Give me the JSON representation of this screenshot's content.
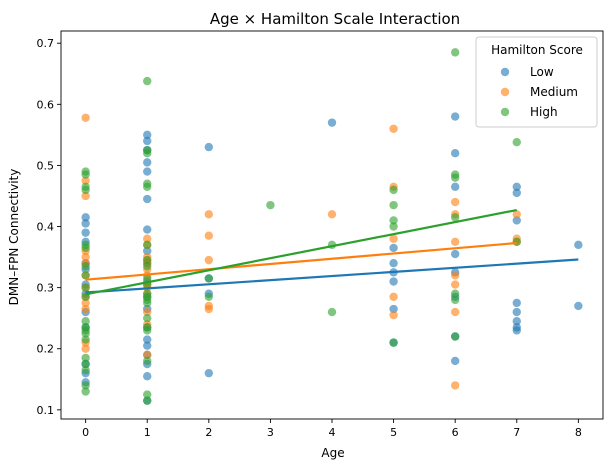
{
  "chart_data": {
    "type": "scatter",
    "title": "Age × Hamilton Scale Interaction",
    "xlabel": "Age",
    "ylabel": "DMN–FPN Connectivity",
    "xlim": [
      -0.4,
      8.4
    ],
    "ylim": [
      0.085,
      0.72
    ],
    "x_ticks": [
      0,
      1,
      2,
      3,
      4,
      5,
      6,
      7,
      8
    ],
    "y_ticks": [
      0.1,
      0.2,
      0.3,
      0.4,
      0.5,
      0.6,
      0.7
    ],
    "grid": false,
    "legend": {
      "title": "Hamilton Score",
      "placement": "top-right"
    },
    "series": [
      {
        "name": "Low",
        "color": "#1f77b4",
        "points": [
          [
            0,
            0.415
          ],
          [
            0,
            0.405
          ],
          [
            0,
            0.39
          ],
          [
            0,
            0.375
          ],
          [
            0,
            0.34
          ],
          [
            0,
            0.33
          ],
          [
            0,
            0.305
          ],
          [
            0,
            0.29
          ],
          [
            0,
            0.26
          ],
          [
            0,
            0.235
          ],
          [
            0,
            0.175
          ],
          [
            0,
            0.16
          ],
          [
            0,
            0.145
          ],
          [
            1,
            0.55
          ],
          [
            1,
            0.54
          ],
          [
            1,
            0.525
          ],
          [
            1,
            0.505
          ],
          [
            1,
            0.49
          ],
          [
            1,
            0.445
          ],
          [
            1,
            0.395
          ],
          [
            1,
            0.36
          ],
          [
            1,
            0.34
          ],
          [
            1,
            0.31
          ],
          [
            1,
            0.285
          ],
          [
            1,
            0.265
          ],
          [
            1,
            0.235
          ],
          [
            1,
            0.215
          ],
          [
            1,
            0.205
          ],
          [
            1,
            0.19
          ],
          [
            1,
            0.175
          ],
          [
            1,
            0.155
          ],
          [
            1,
            0.115
          ],
          [
            2,
            0.53
          ],
          [
            2,
            0.315
          ],
          [
            2,
            0.29
          ],
          [
            2,
            0.16
          ],
          [
            4,
            0.57
          ],
          [
            5,
            0.365
          ],
          [
            5,
            0.34
          ],
          [
            5,
            0.325
          ],
          [
            5,
            0.31
          ],
          [
            5,
            0.265
          ],
          [
            5,
            0.21
          ],
          [
            6,
            0.58
          ],
          [
            6,
            0.52
          ],
          [
            6,
            0.465
          ],
          [
            6,
            0.355
          ],
          [
            6,
            0.325
          ],
          [
            6,
            0.285
          ],
          [
            6,
            0.22
          ],
          [
            6,
            0.18
          ],
          [
            7,
            0.465
          ],
          [
            7,
            0.455
          ],
          [
            7,
            0.41
          ],
          [
            7,
            0.275
          ],
          [
            7,
            0.26
          ],
          [
            7,
            0.245
          ],
          [
            7,
            0.235
          ],
          [
            7,
            0.23
          ],
          [
            8,
            0.37
          ],
          [
            8,
            0.27
          ]
        ],
        "trend": [
          [
            0,
            0.292
          ],
          [
            8,
            0.346
          ]
        ]
      },
      {
        "name": "Medium",
        "color": "#ff7f0e",
        "points": [
          [
            0,
            0.578
          ],
          [
            0,
            0.475
          ],
          [
            0,
            0.45
          ],
          [
            0,
            0.36
          ],
          [
            0,
            0.35
          ],
          [
            0,
            0.34
          ],
          [
            0,
            0.32
          ],
          [
            0,
            0.3
          ],
          [
            0,
            0.285
          ],
          [
            0,
            0.275
          ],
          [
            0,
            0.265
          ],
          [
            0,
            0.21
          ],
          [
            0,
            0.2
          ],
          [
            1,
            0.38
          ],
          [
            1,
            0.37
          ],
          [
            1,
            0.35
          ],
          [
            1,
            0.345
          ],
          [
            1,
            0.34
          ],
          [
            1,
            0.33
          ],
          [
            1,
            0.32
          ],
          [
            1,
            0.305
          ],
          [
            1,
            0.3
          ],
          [
            1,
            0.29
          ],
          [
            1,
            0.26
          ],
          [
            1,
            0.24
          ],
          [
            1,
            0.19
          ],
          [
            2,
            0.42
          ],
          [
            2,
            0.385
          ],
          [
            2,
            0.345
          ],
          [
            2,
            0.27
          ],
          [
            2,
            0.265
          ],
          [
            4,
            0.42
          ],
          [
            5,
            0.56
          ],
          [
            5,
            0.465
          ],
          [
            5,
            0.38
          ],
          [
            5,
            0.285
          ],
          [
            5,
            0.255
          ],
          [
            6,
            0.44
          ],
          [
            6,
            0.42
          ],
          [
            6,
            0.375
          ],
          [
            6,
            0.32
          ],
          [
            6,
            0.305
          ],
          [
            6,
            0.26
          ],
          [
            6,
            0.14
          ],
          [
            7,
            0.42
          ],
          [
            7,
            0.38
          ],
          [
            7,
            0.375
          ]
        ],
        "trend": [
          [
            0,
            0.313
          ],
          [
            7,
            0.373
          ]
        ]
      },
      {
        "name": "High",
        "color": "#2ca02c",
        "points": [
          [
            0,
            0.49
          ],
          [
            0,
            0.485
          ],
          [
            0,
            0.465
          ],
          [
            0,
            0.46
          ],
          [
            0,
            0.37
          ],
          [
            0,
            0.365
          ],
          [
            0,
            0.335
          ],
          [
            0,
            0.32
          ],
          [
            0,
            0.3
          ],
          [
            0,
            0.285
          ],
          [
            0,
            0.245
          ],
          [
            0,
            0.235
          ],
          [
            0,
            0.23
          ],
          [
            0,
            0.225
          ],
          [
            0,
            0.215
          ],
          [
            0,
            0.185
          ],
          [
            0,
            0.175
          ],
          [
            0,
            0.165
          ],
          [
            0,
            0.14
          ],
          [
            0,
            0.13
          ],
          [
            1,
            0.638
          ],
          [
            1,
            0.525
          ],
          [
            1,
            0.52
          ],
          [
            1,
            0.47
          ],
          [
            1,
            0.465
          ],
          [
            1,
            0.37
          ],
          [
            1,
            0.345
          ],
          [
            1,
            0.335
          ],
          [
            1,
            0.315
          ],
          [
            1,
            0.305
          ],
          [
            1,
            0.29
          ],
          [
            1,
            0.285
          ],
          [
            1,
            0.28
          ],
          [
            1,
            0.275
          ],
          [
            1,
            0.25
          ],
          [
            1,
            0.235
          ],
          [
            1,
            0.23
          ],
          [
            1,
            0.18
          ],
          [
            1,
            0.125
          ],
          [
            1,
            0.115
          ],
          [
            2,
            0.315
          ],
          [
            2,
            0.285
          ],
          [
            3,
            0.435
          ],
          [
            4,
            0.37
          ],
          [
            4,
            0.26
          ],
          [
            5,
            0.46
          ],
          [
            5,
            0.435
          ],
          [
            5,
            0.41
          ],
          [
            5,
            0.4
          ],
          [
            5,
            0.21
          ],
          [
            6,
            0.685
          ],
          [
            6,
            0.485
          ],
          [
            6,
            0.48
          ],
          [
            6,
            0.415
          ],
          [
            6,
            0.29
          ],
          [
            6,
            0.28
          ],
          [
            6,
            0.22
          ],
          [
            7,
            0.538
          ],
          [
            7,
            0.375
          ]
        ],
        "trend": [
          [
            0,
            0.289
          ],
          [
            7,
            0.427
          ]
        ]
      }
    ]
  }
}
